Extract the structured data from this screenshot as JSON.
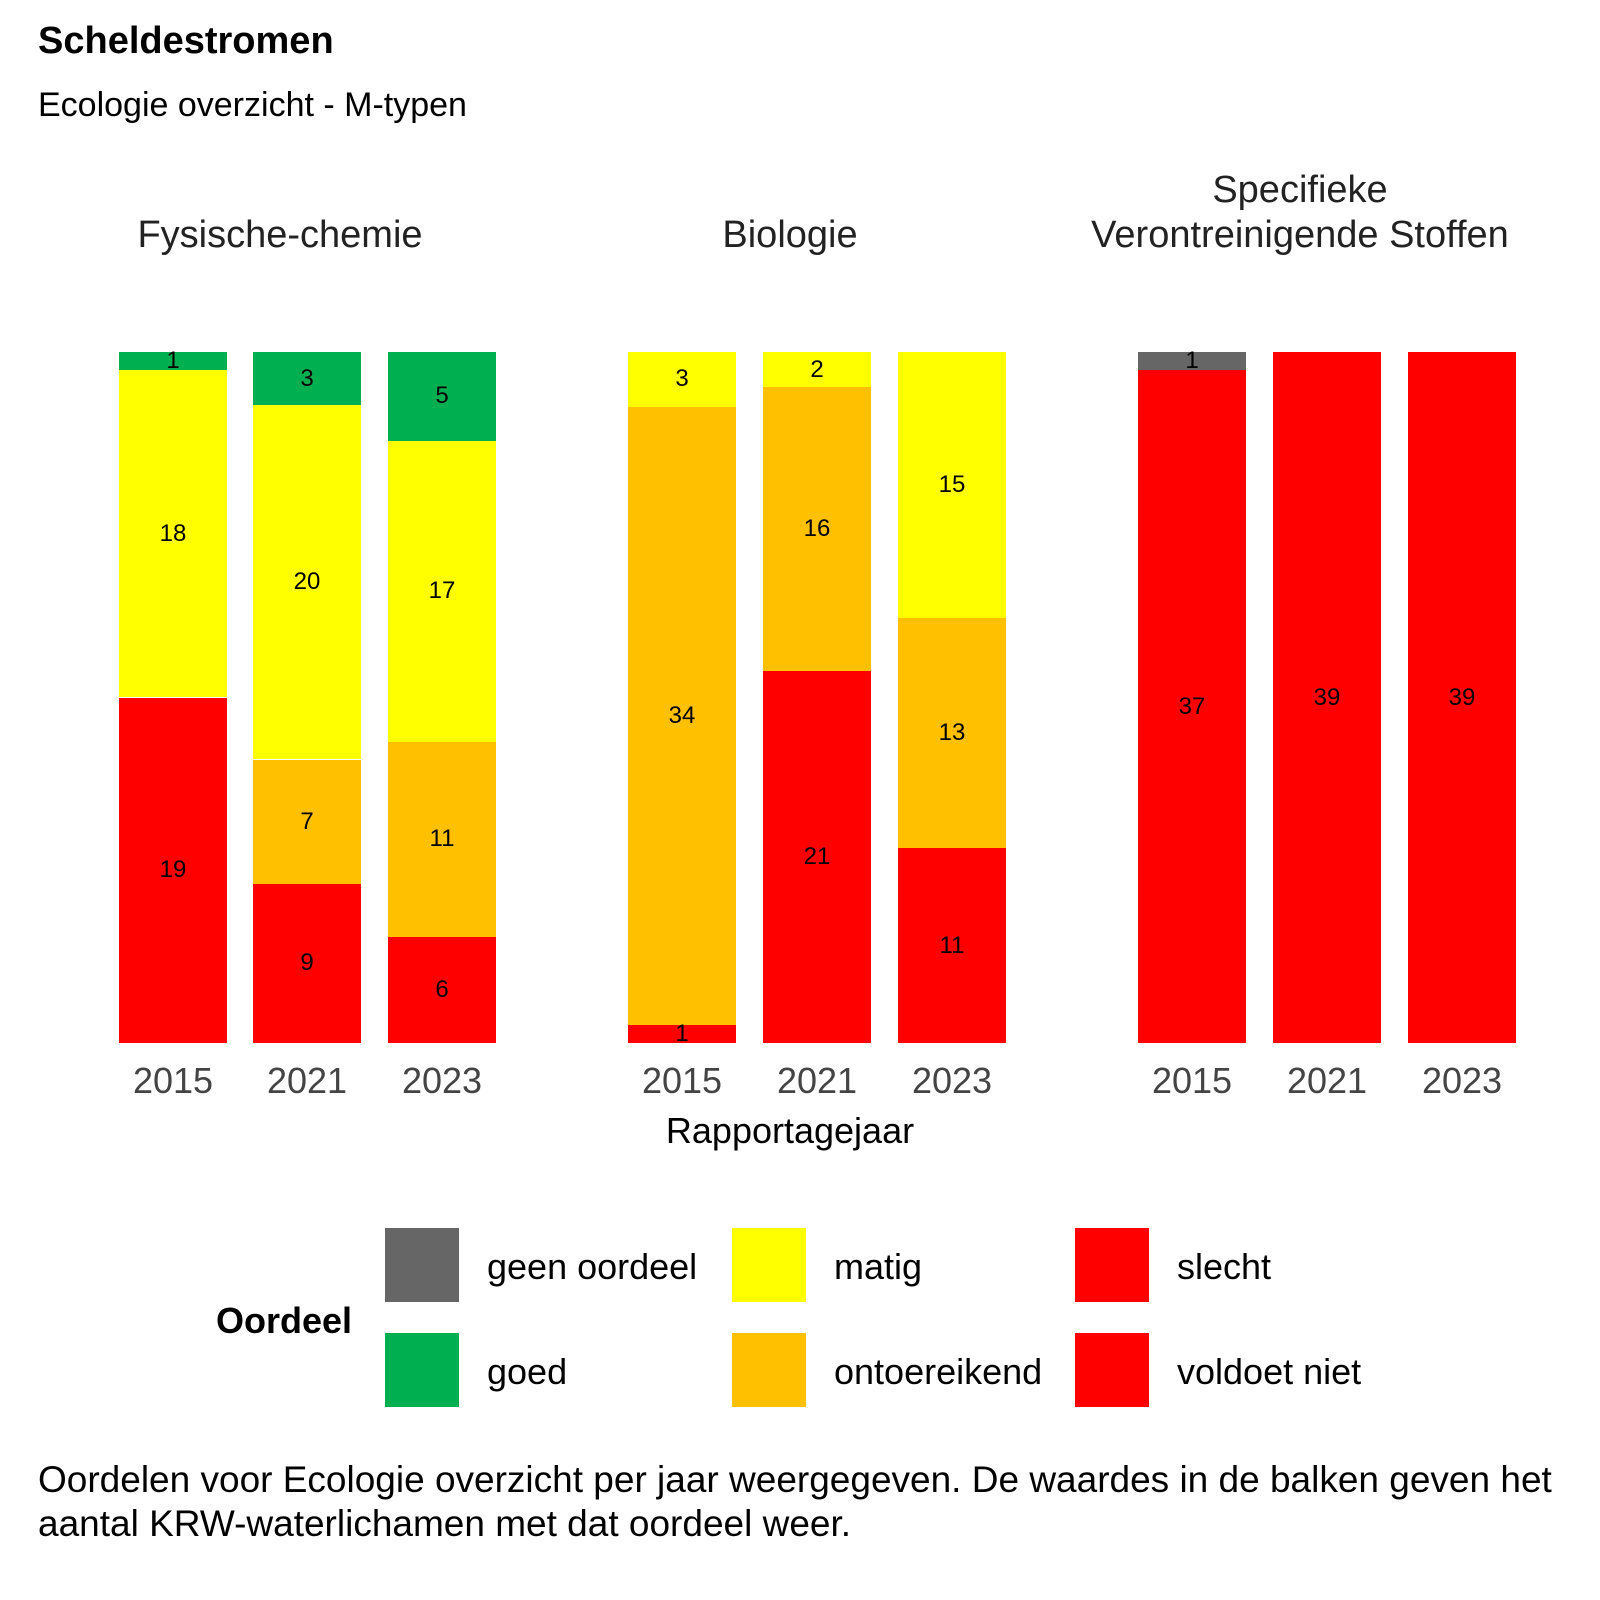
{
  "title": "Scheldestromen",
  "subtitle": "Ecologie overzicht - M-typen",
  "caption": "Oordelen voor Ecologie overzicht per jaar weergegeven. De waardes in de balken geven het aantal KRW-waterlichamen met dat oordeel weer.",
  "chart_data": {
    "type": "bar",
    "stacked": "percent",
    "xlabel": "Rapportagejaar",
    "ylabel": "",
    "categories": [
      "2015",
      "2021",
      "2023"
    ],
    "legend": {
      "title": "Oordeel",
      "placement": "bottom",
      "entries": [
        {
          "name": "geen oordeel",
          "color": "#666666"
        },
        {
          "name": "goed",
          "color": "#00B050"
        },
        {
          "name": "matig",
          "color": "#FFFF00"
        },
        {
          "name": "ontoereikend",
          "color": "#FFC000"
        },
        {
          "name": "slecht",
          "color": "#FF0000"
        },
        {
          "name": "voldoet niet",
          "color": "#FF0000"
        }
      ]
    },
    "panels": [
      {
        "title": "Fysische-chemie",
        "series": [
          {
            "name": "goed",
            "values": [
              1,
              3,
              5
            ]
          },
          {
            "name": "matig",
            "values": [
              18,
              20,
              17
            ]
          },
          {
            "name": "ontoereikend",
            "values": [
              0,
              7,
              11
            ]
          },
          {
            "name": "slecht",
            "values": [
              19,
              9,
              6
            ]
          }
        ]
      },
      {
        "title": "Biologie",
        "series": [
          {
            "name": "matig",
            "values": [
              3,
              2,
              15
            ]
          },
          {
            "name": "ontoereikend",
            "values": [
              34,
              16,
              13
            ]
          },
          {
            "name": "slecht",
            "values": [
              1,
              21,
              11
            ]
          }
        ]
      },
      {
        "title": "Specifieke Verontreinigende Stoffen",
        "series": [
          {
            "name": "geen oordeel",
            "values": [
              1,
              0,
              0
            ]
          },
          {
            "name": "voldoet niet",
            "values": [
              37,
              39,
              39
            ]
          }
        ]
      }
    ]
  }
}
